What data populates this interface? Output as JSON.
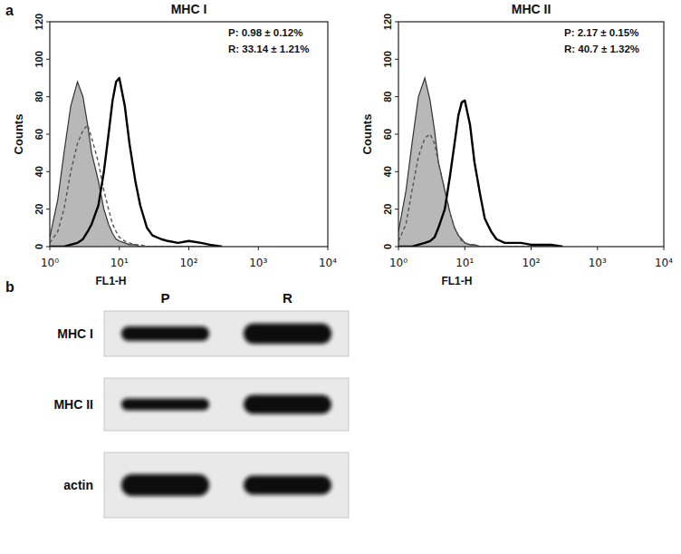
{
  "chart_data": [
    {
      "type": "histogram",
      "panel_label": "a",
      "title": "MHC I",
      "x_label": "FL1-H",
      "y_label": "Counts",
      "log": "x",
      "xlim": [
        1,
        10000
      ],
      "ylim": [
        0,
        120
      ],
      "xticks": [
        {
          "value": 1,
          "label": "10⁰"
        },
        {
          "value": 10,
          "label": "10¹"
        },
        {
          "value": 100,
          "label": "10²"
        },
        {
          "value": 1000,
          "label": "10³"
        },
        {
          "value": 10000,
          "label": "10⁴"
        }
      ],
      "yticks": [
        0,
        20,
        40,
        60,
        80,
        100,
        120
      ],
      "annotations": [
        "P: 0.98 ± 0.12%",
        "R: 33.14 ± 1.21%"
      ],
      "x": [
        1,
        1.3,
        1.6,
        2,
        2.5,
        3,
        3.5,
        4,
        5,
        6,
        7,
        8,
        9,
        10,
        12,
        14,
        17,
        20,
        25,
        30,
        40,
        50,
        70,
        100,
        150,
        200,
        300
      ],
      "series": [
        {
          "type": "area",
          "color": "#b8b8b8",
          "line_style": "solid",
          "values": [
            5,
            25,
            50,
            75,
            88,
            80,
            65,
            50,
            35,
            20,
            12,
            7,
            4,
            3,
            2,
            1,
            1,
            0,
            0,
            0,
            0,
            0,
            0,
            0,
            0,
            0,
            0
          ]
        },
        {
          "type": "line",
          "color": "#555555",
          "line_style": "dashed",
          "values": [
            2,
            8,
            20,
            40,
            55,
            62,
            65,
            58,
            45,
            30,
            20,
            12,
            8,
            5,
            3,
            2,
            1,
            1,
            0,
            0,
            0,
            0,
            0,
            0,
            0,
            0,
            0
          ]
        },
        {
          "type": "line",
          "color": "#000000",
          "line_style": "solid",
          "values": [
            0,
            0,
            0,
            1,
            2,
            4,
            8,
            12,
            22,
            40,
            60,
            78,
            88,
            90,
            75,
            55,
            35,
            22,
            10,
            6,
            4,
            3,
            2,
            3,
            2,
            1,
            0
          ]
        }
      ]
    },
    {
      "type": "histogram",
      "title": "MHC II",
      "x_label": "FL1-H",
      "y_label": "Counts",
      "log": "x",
      "xlim": [
        1,
        10000
      ],
      "ylim": [
        0,
        120
      ],
      "xticks": [
        {
          "value": 1,
          "label": "10⁰"
        },
        {
          "value": 10,
          "label": "10¹"
        },
        {
          "value": 100,
          "label": "10²"
        },
        {
          "value": 1000,
          "label": "10³"
        },
        {
          "value": 10000,
          "label": "10⁴"
        }
      ],
      "yticks": [
        0,
        20,
        40,
        60,
        80,
        100,
        120
      ],
      "annotations": [
        "P: 2.17 ± 0.15%",
        "R: 40.7 ± 1.32%"
      ],
      "x": [
        1,
        1.3,
        1.6,
        2,
        2.5,
        3,
        3.5,
        4,
        5,
        6,
        7,
        8,
        9,
        10,
        12,
        14,
        17,
        20,
        25,
        30,
        40,
        50,
        70,
        100,
        150,
        200,
        300
      ],
      "series": [
        {
          "type": "area",
          "color": "#b8b8b8",
          "line_style": "solid",
          "values": [
            8,
            30,
            55,
            80,
            90,
            78,
            62,
            45,
            30,
            18,
            10,
            6,
            4,
            2,
            1,
            1,
            0,
            0,
            0,
            0,
            0,
            0,
            0,
            0,
            0,
            0,
            0
          ]
        },
        {
          "type": "line",
          "color": "#555555",
          "line_style": "dashed",
          "values": [
            3,
            12,
            30,
            48,
            58,
            60,
            55,
            45,
            30,
            18,
            10,
            6,
            3,
            2,
            1,
            1,
            0,
            0,
            0,
            0,
            0,
            0,
            0,
            0,
            0,
            0,
            0
          ]
        },
        {
          "type": "line",
          "color": "#000000",
          "line_style": "solid",
          "values": [
            0,
            0,
            0,
            1,
            2,
            3,
            5,
            10,
            20,
            38,
            55,
            70,
            77,
            78,
            65,
            45,
            28,
            15,
            8,
            4,
            2,
            2,
            2,
            1,
            1,
            1,
            0
          ]
        }
      ]
    },
    {
      "type": "blot",
      "panel_label": "b",
      "categories": [
        "P",
        "R"
      ],
      "color": "#111111",
      "series": [
        {
          "name": "MHC I",
          "values": [
            1,
            1.4
          ]
        },
        {
          "name": "MHC II",
          "values": [
            0.8,
            1.3
          ]
        },
        {
          "name": "actin",
          "values": [
            1.5,
            1.3
          ]
        }
      ]
    }
  ]
}
